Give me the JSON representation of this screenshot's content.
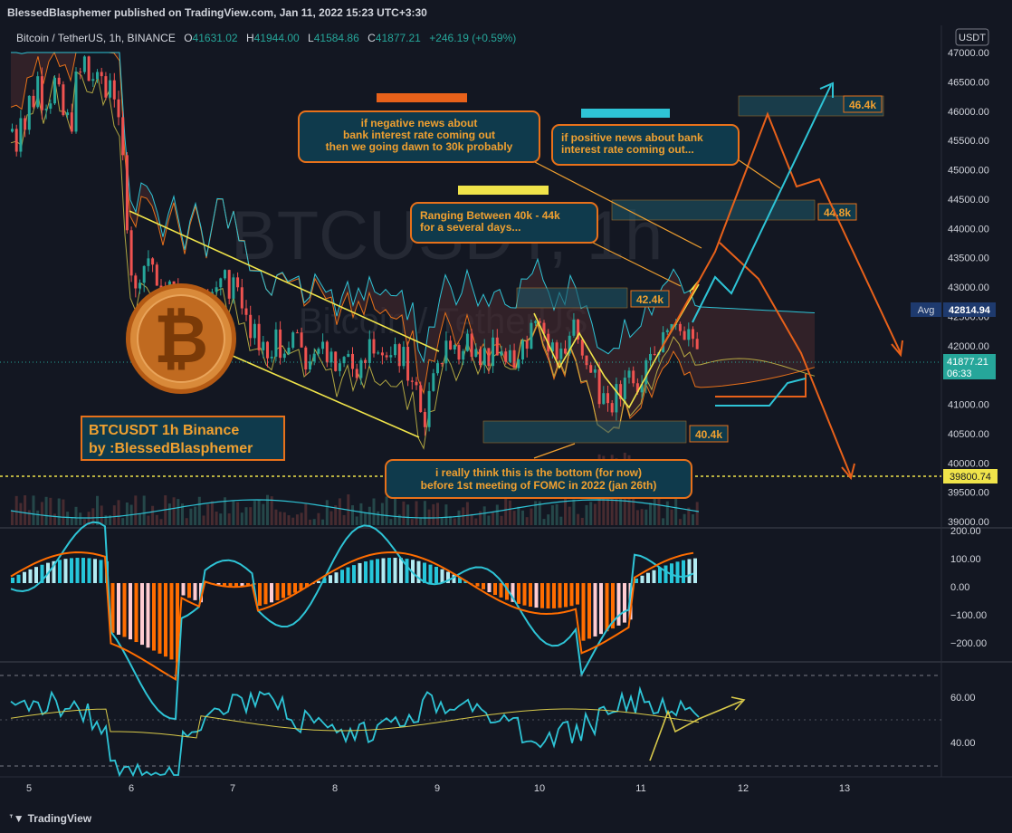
{
  "header": {
    "publisher_line": "BlessedBlasphemer published on TradingView.com, Jan 11, 2022 15:23 UTC+3:30"
  },
  "symbol_bar": {
    "name": "Bitcoin / TetherUS, 1h, BINANCE",
    "o_label": "O",
    "o_value": "41631.02",
    "h_label": "H",
    "h_value": "41944.00",
    "l_label": "L",
    "l_value": "41584.86",
    "c_label": "C",
    "c_value": "41877.21",
    "change": "+246.19 (+0.59%)"
  },
  "watermark": {
    "big": "BTCUSDT, 1h",
    "small": "Bitcoin / TetherUS"
  },
  "currency_label": "USDT",
  "footer": {
    "brand": "TradingView"
  },
  "colors": {
    "bg": "#131722",
    "up": "#26a69a",
    "down": "#ef5350",
    "orange": "#e8711a",
    "yellow": "#f0e44a",
    "cyan": "#2ec4d6",
    "annotation_box": "#0f3a4c"
  },
  "chart_data": {
    "type": "candlestick",
    "price_axis": {
      "ticks": [
        "47000.00",
        "46500.00",
        "46000.00",
        "45500.00",
        "45000.00",
        "44500.00",
        "44000.00",
        "43500.00",
        "43000.00",
        "42500.00",
        "42000.00",
        "41500.00",
        "41000.00",
        "40500.00",
        "40000.00",
        "39500.00",
        "39000.00"
      ],
      "avg_label": "Avg",
      "avg_value": "42814.94",
      "last_price": "41877.21",
      "countdown": "06:33",
      "level_label": "39800.74"
    },
    "x_axis": {
      "ticks": [
        "5",
        "6",
        "7",
        "8",
        "9",
        "10",
        "11",
        "12",
        "13"
      ]
    },
    "price_path": [
      [
        0,
        46900
      ],
      [
        4,
        46500
      ],
      [
        8,
        45600
      ],
      [
        12,
        45700
      ],
      [
        16,
        45200
      ],
      [
        20,
        46200
      ],
      [
        24,
        45600
      ],
      [
        28,
        45800
      ],
      [
        32,
        46400
      ],
      [
        36,
        46100
      ],
      [
        40,
        46600
      ],
      [
        44,
        46200
      ],
      [
        48,
        45900
      ],
      [
        52,
        46500
      ],
      [
        56,
        46000
      ],
      [
        60,
        46700
      ],
      [
        64,
        46300
      ],
      [
        68,
        45900
      ],
      [
        72,
        46100
      ],
      [
        76,
        45400
      ],
      [
        80,
        46200
      ],
      [
        84,
        46800
      ],
      [
        88,
        46600
      ],
      [
        92,
        46900
      ],
      [
        96,
        46500
      ],
      [
        100,
        46700
      ],
      [
        104,
        46300
      ],
      [
        108,
        46800
      ],
      [
        112,
        46500
      ],
      [
        116,
        46200
      ],
      [
        120,
        46600
      ],
      [
        124,
        46400
      ],
      [
        128,
        45700
      ],
      [
        132,
        45900
      ],
      [
        136,
        44600
      ],
      [
        140,
        43900
      ],
      [
        144,
        43200
      ],
      [
        148,
        42900
      ],
      [
        152,
        43100
      ],
      [
        156,
        43500
      ],
      [
        160,
        43200
      ],
      [
        164,
        43700
      ],
      [
        168,
        43300
      ],
      [
        172,
        42900
      ],
      [
        176,
        43100
      ],
      [
        180,
        42600
      ],
      [
        184,
        43200
      ],
      [
        188,
        42800
      ],
      [
        192,
        43300
      ],
      [
        196,
        42700
      ],
      [
        200,
        43000
      ],
      [
        204,
        42400
      ],
      [
        208,
        43100
      ],
      [
        212,
        42700
      ],
      [
        216,
        43200
      ],
      [
        220,
        42600
      ],
      [
        224,
        43000
      ],
      [
        228,
        42300
      ],
      [
        232,
        42900
      ],
      [
        236,
        42700
      ],
      [
        240,
        43300
      ],
      [
        244,
        43100
      ],
      [
        248,
        43500
      ],
      [
        252,
        42800
      ],
      [
        256,
        43200
      ],
      [
        260,
        43000
      ],
      [
        264,
        42600
      ],
      [
        268,
        42900
      ],
      [
        272,
        42300
      ],
      [
        276,
        42100
      ],
      [
        280,
        42400
      ],
      [
        284,
        41800
      ],
      [
        288,
        42100
      ],
      [
        292,
        41600
      ],
      [
        296,
        42000
      ],
      [
        300,
        41700
      ],
      [
        304,
        42300
      ],
      [
        308,
        41800
      ],
      [
        312,
        42100
      ],
      [
        316,
        41500
      ],
      [
        320,
        42400
      ],
      [
        324,
        42000
      ],
      [
        328,
        42300
      ],
      [
        332,
        41800
      ],
      [
        336,
        41600
      ],
      [
        340,
        41900
      ],
      [
        344,
        41500
      ],
      [
        348,
        42100
      ],
      [
        352,
        41700
      ],
      [
        356,
        42200
      ],
      [
        360,
        41800
      ],
      [
        364,
        42000
      ],
      [
        368,
        41700
      ],
      [
        372,
        41400
      ],
      [
        376,
        41900
      ],
      [
        380,
        41600
      ],
      [
        384,
        42000
      ],
      [
        388,
        41700
      ],
      [
        392,
        41500
      ],
      [
        396,
        41900
      ],
      [
        400,
        41600
      ],
      [
        404,
        41800
      ],
      [
        408,
        42100
      ],
      [
        412,
        41700
      ],
      [
        416,
        42000
      ],
      [
        420,
        41800
      ],
      [
        424,
        41700
      ],
      [
        428,
        42100
      ],
      [
        432,
        41800
      ],
      [
        436,
        42000
      ],
      [
        440,
        41600
      ],
      [
        444,
        41900
      ],
      [
        448,
        41500
      ],
      [
        452,
        41300
      ],
      [
        456,
        41700
      ],
      [
        460,
        41000
      ],
      [
        464,
        40800
      ],
      [
        468,
        40700
      ],
      [
        472,
        41100
      ],
      [
        476,
        41500
      ],
      [
        480,
        41300
      ],
      [
        484,
        41900
      ],
      [
        488,
        41700
      ],
      [
        492,
        42200
      ],
      [
        496,
        41900
      ],
      [
        500,
        42100
      ],
      [
        504,
        41700
      ],
      [
        508,
        42000
      ],
      [
        512,
        41800
      ],
      [
        516,
        42300
      ],
      [
        520,
        41900
      ],
      [
        524,
        42100
      ],
      [
        528,
        41700
      ],
      [
        532,
        42000
      ],
      [
        536,
        41800
      ],
      [
        540,
        41700
      ],
      [
        544,
        42100
      ],
      [
        548,
        41800
      ],
      [
        552,
        42000
      ],
      [
        556,
        41600
      ],
      [
        560,
        41900
      ],
      [
        564,
        41700
      ],
      [
        568,
        41500
      ],
      [
        572,
        41900
      ],
      [
        576,
        42200
      ],
      [
        580,
        41800
      ],
      [
        584,
        42600
      ],
      [
        588,
        42300
      ],
      [
        592,
        42700
      ],
      [
        596,
        42400
      ],
      [
        600,
        42200
      ],
      [
        604,
        41900
      ],
      [
        608,
        42100
      ],
      [
        612,
        41700
      ],
      [
        616,
        41900
      ],
      [
        620,
        42100
      ],
      [
        624,
        41800
      ],
      [
        628,
        42200
      ],
      [
        632,
        42400
      ],
      [
        636,
        42100
      ],
      [
        640,
        41900
      ],
      [
        644,
        41600
      ],
      [
        648,
        41800
      ],
      [
        652,
        41400
      ],
      [
        656,
        41600
      ],
      [
        660,
        41100
      ],
      [
        664,
        41300
      ],
      [
        668,
        40800
      ],
      [
        672,
        41000
      ],
      [
        676,
        40900
      ],
      [
        680,
        41300
      ],
      [
        684,
        41100
      ],
      [
        688,
        41500
      ],
      [
        692,
        41700
      ],
      [
        696,
        41300
      ],
      [
        700,
        41600
      ],
      [
        704,
        41200
      ],
      [
        708,
        41500
      ],
      [
        712,
        41800
      ],
      [
        716,
        42000
      ],
      [
        720,
        41700
      ],
      [
        724,
        42100
      ],
      [
        728,
        41900
      ],
      [
        732,
        42200
      ],
      [
        736,
        42400
      ],
      [
        740,
        42200
      ],
      [
        744,
        42500
      ],
      [
        748,
        42300
      ],
      [
        752,
        42400
      ],
      [
        756,
        42100
      ],
      [
        760,
        42300
      ],
      [
        764,
        42000
      ],
      [
        768,
        41900
      ],
      [
        772,
        41880
      ]
    ],
    "annotations": [
      {
        "id": "neg",
        "text1": "if negative news about",
        "text2": "bank interest rate coming out",
        "text3": "then we going dawn to 30k probably"
      },
      {
        "id": "pos",
        "text1": "if positive news about bank",
        "text2": "interest rate coming out..."
      },
      {
        "id": "range",
        "text1": "Ranging Between 40k - 44k",
        "text2": "for a several days..."
      },
      {
        "id": "bottom",
        "text1": "i really think this is the bottom (for now)",
        "text2": "before 1st meeting of FOMC in 2022 (jan 26th)"
      },
      {
        "id": "title",
        "text1": "BTCUSDT 1h Binance",
        "text2": "by :BlessedBlasphemer"
      }
    ],
    "zone_labels": [
      "46.4k",
      "44.8k",
      "42.4k",
      "40.4k"
    ],
    "macd_axis": {
      "ticks": [
        "200.00",
        "100.00",
        "0.00",
        "−100.00",
        "−200.00"
      ]
    },
    "rsi_axis": {
      "ticks": [
        "60.00",
        "40.00"
      ]
    }
  }
}
